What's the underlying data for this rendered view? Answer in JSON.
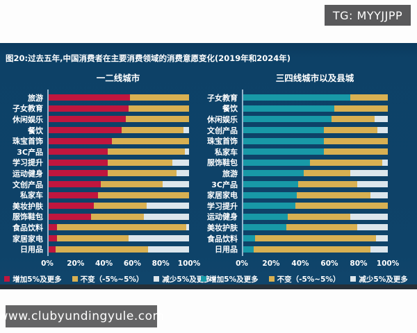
{
  "watermarks": {
    "tg": "TG: MYYJJPP",
    "site": "www.clubyundingyule.com"
  },
  "figure": {
    "title": "图20:过去五年,中国消费者在主要消费领域的消费意愿变化(2019年和2024年)"
  },
  "chart_data": {
    "type": "bar",
    "orientation": "horizontal",
    "stacked": true,
    "unit": "percent",
    "xlim": [
      0,
      100
    ],
    "x_ticks": [
      "0%",
      "20%",
      "40%",
      "60%",
      "80%",
      "100%"
    ],
    "legend_labels": [
      "增加5%及更多",
      "不变（-5%~5%）",
      "减少5%及更多"
    ],
    "background_color": "#0d4167",
    "charts": [
      {
        "title": "一二线城市",
        "series_names": [
          "增加5%及更多",
          "不变（-5%~5%）",
          "减少5%及更多"
        ],
        "colors": [
          "#c0163e",
          "#d8b052",
          "#dce6ec"
        ],
        "categories": [
          "旅游",
          "子女教育",
          "休闲娱乐",
          "餐饮",
          "珠宝首饰",
          "3C产品",
          "学习提升",
          "运动健身",
          "文创产品",
          "私家车",
          "美妆护肤",
          "服饰鞋包",
          "食品饮料",
          "家居家电",
          "日用品"
        ],
        "rows": [
          [
            58,
            42,
            0
          ],
          [
            57,
            43,
            0
          ],
          [
            55,
            45,
            0
          ],
          [
            52,
            44,
            4
          ],
          [
            45,
            55,
            0
          ],
          [
            42,
            55,
            3
          ],
          [
            42,
            46,
            12
          ],
          [
            42,
            49,
            9
          ],
          [
            37,
            44,
            19
          ],
          [
            35,
            65,
            0
          ],
          [
            32,
            38,
            30
          ],
          [
            30,
            38,
            32
          ],
          [
            6,
            92,
            2
          ],
          [
            6,
            51,
            43
          ],
          [
            5,
            66,
            29
          ]
        ]
      },
      {
        "title": "三四线城市以及县城",
        "series_names": [
          "增加5%及更多",
          "不变（-5%~5%）",
          "减少5%及更多"
        ],
        "colors": [
          "#1899a7",
          "#d8b052",
          "#dce6ec"
        ],
        "categories": [
          "子女教育",
          "餐饮",
          "休闲娱乐",
          "文创产品",
          "珠宝首饰",
          "私家车",
          "服饰鞋包",
          "旅游",
          "3C产品",
          "家居家电",
          "学习提升",
          "运动健身",
          "美妆护肤",
          "食品饮料",
          "日用品"
        ],
        "rows": [
          [
            74,
            26,
            0
          ],
          [
            63,
            37,
            0
          ],
          [
            61,
            30,
            9
          ],
          [
            56,
            37,
            7
          ],
          [
            56,
            44,
            0
          ],
          [
            56,
            44,
            0
          ],
          [
            46,
            50,
            4
          ],
          [
            42,
            32,
            26
          ],
          [
            38,
            41,
            21
          ],
          [
            37,
            51,
            12
          ],
          [
            36,
            64,
            0
          ],
          [
            31,
            43,
            26
          ],
          [
            30,
            49,
            21
          ],
          [
            8,
            84,
            8
          ],
          [
            7,
            81,
            12
          ]
        ]
      }
    ]
  }
}
